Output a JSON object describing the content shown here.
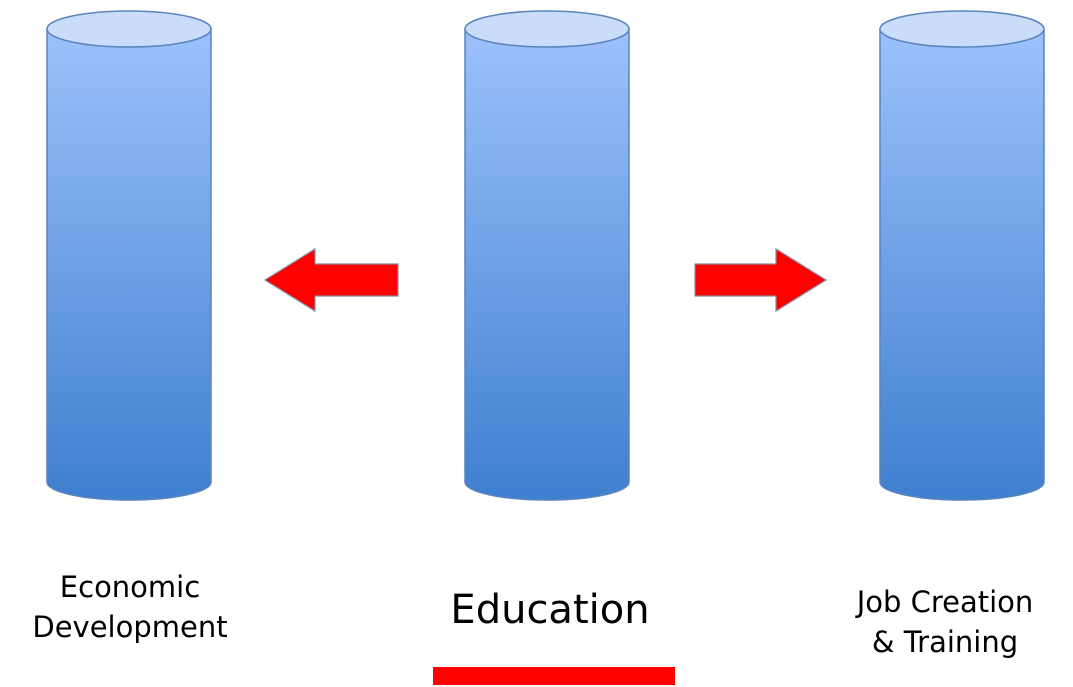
{
  "labels": {
    "left": [
      "Economic",
      "Development"
    ],
    "center": [
      "Education"
    ],
    "right": [
      "Job Creation",
      "& Training"
    ]
  },
  "colors": {
    "pillar_top": "#c9dcf9",
    "pillar_gradient_start": "#9cc2fb",
    "pillar_gradient_end": "#3f7fcf",
    "pillar_outline": "#5b83bd",
    "arrow_fill": "#ff0000",
    "arrow_outline": "#8a8aa0",
    "underline": "#ff0000"
  }
}
